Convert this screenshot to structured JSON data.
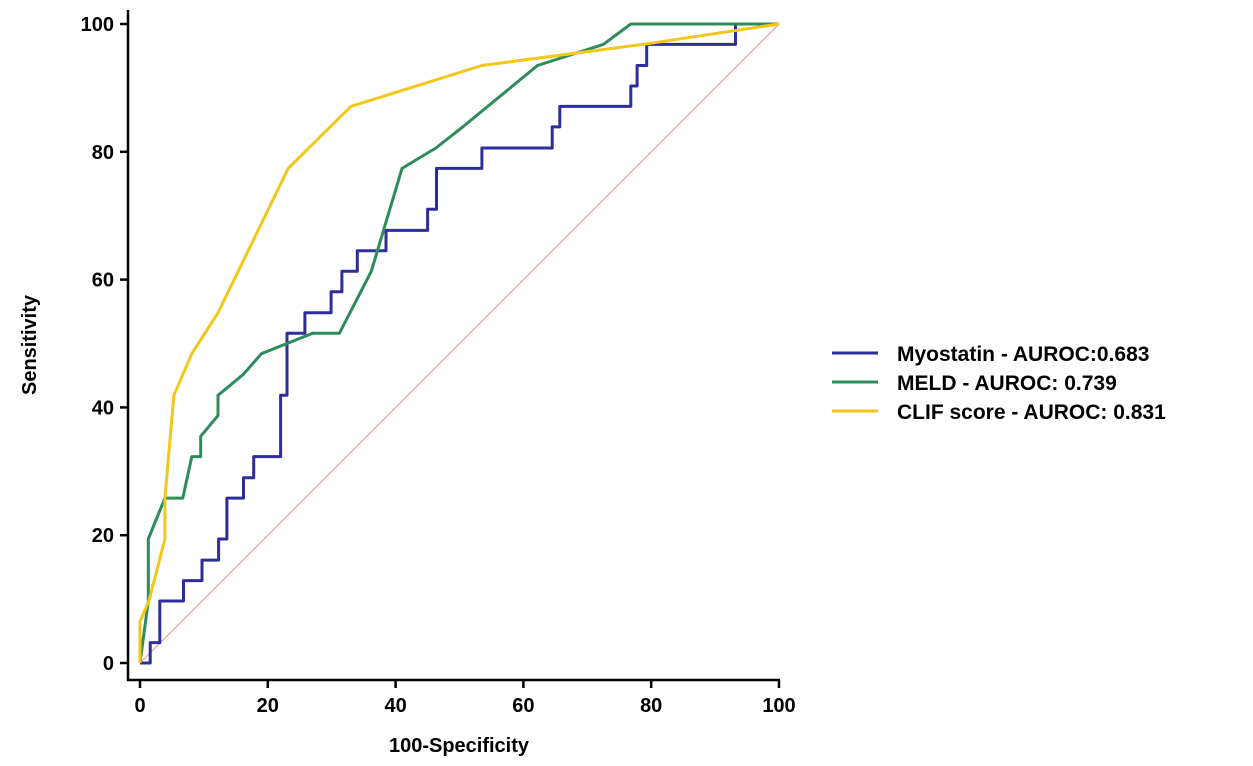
{
  "chart_data": {
    "type": "line",
    "xlabel": "100-Specificity",
    "ylabel": "Sensitivity",
    "xlim": [
      0,
      100
    ],
    "ylim": [
      0,
      100
    ],
    "xticks": [
      0,
      20,
      40,
      60,
      80,
      100
    ],
    "yticks": [
      0,
      20,
      40,
      60,
      80,
      100
    ],
    "grid": false,
    "legend_position": "right",
    "reference_line": {
      "from": [
        0,
        0
      ],
      "to": [
        100,
        100
      ],
      "color": "#e0a0a0"
    },
    "series": [
      {
        "name": "Myostatin - AUROC:0.683",
        "color": "#2e2e9a",
        "step": true,
        "points": [
          [
            0,
            0
          ],
          [
            1.6,
            0
          ],
          [
            1.6,
            3.2
          ],
          [
            3.1,
            3.2
          ],
          [
            3.1,
            9.7
          ],
          [
            6.8,
            9.7
          ],
          [
            6.8,
            12.9
          ],
          [
            9.7,
            12.9
          ],
          [
            9.7,
            16.1
          ],
          [
            12.3,
            16.1
          ],
          [
            12.3,
            19.4
          ],
          [
            13.6,
            19.4
          ],
          [
            13.6,
            25.8
          ],
          [
            16.2,
            25.8
          ],
          [
            16.2,
            29
          ],
          [
            17.8,
            29
          ],
          [
            17.8,
            32.3
          ],
          [
            22,
            32.3
          ],
          [
            22,
            41.9
          ],
          [
            23,
            41.9
          ],
          [
            23,
            51.6
          ],
          [
            25.8,
            51.6
          ],
          [
            25.8,
            54.8
          ],
          [
            29.9,
            54.8
          ],
          [
            29.9,
            58.1
          ],
          [
            31.6,
            58.1
          ],
          [
            31.6,
            61.3
          ],
          [
            34,
            61.3
          ],
          [
            34,
            64.5
          ],
          [
            38.5,
            64.5
          ],
          [
            38.5,
            67.7
          ],
          [
            45,
            67.7
          ],
          [
            45,
            71
          ],
          [
            46.4,
            71
          ],
          [
            46.4,
            77.4
          ],
          [
            53.5,
            77.4
          ],
          [
            53.5,
            80.6
          ],
          [
            64.5,
            80.6
          ],
          [
            64.5,
            83.9
          ],
          [
            65.7,
            83.9
          ],
          [
            65.7,
            87.1
          ],
          [
            76.8,
            87.1
          ],
          [
            76.8,
            90.3
          ],
          [
            77.8,
            90.3
          ],
          [
            77.8,
            93.5
          ],
          [
            79.3,
            93.5
          ],
          [
            79.3,
            96.8
          ],
          [
            93.2,
            96.8
          ],
          [
            93.2,
            100
          ],
          [
            100,
            100
          ]
        ]
      },
      {
        "name": "MELD - AUROC: 0.739",
        "color": "#2e8b5a",
        "step": false,
        "points": [
          [
            0,
            0
          ],
          [
            1.3,
            9.7
          ],
          [
            1.3,
            19.4
          ],
          [
            3.9,
            25.8
          ],
          [
            6.7,
            25.8
          ],
          [
            8.1,
            32.3
          ],
          [
            9.5,
            32.3
          ],
          [
            9.5,
            35.5
          ],
          [
            12.2,
            38.7
          ],
          [
            12.2,
            41.9
          ],
          [
            16.2,
            45.2
          ],
          [
            19,
            48.4
          ],
          [
            23,
            50
          ],
          [
            27,
            51.6
          ],
          [
            31.2,
            51.6
          ],
          [
            36.2,
            61.3
          ],
          [
            41,
            77.4
          ],
          [
            46.3,
            80.6
          ],
          [
            50.5,
            83.9
          ],
          [
            62.2,
            93.5
          ],
          [
            72.5,
            96.8
          ],
          [
            76.8,
            100
          ],
          [
            100,
            100
          ]
        ]
      },
      {
        "name": "CLIF score - AUROC: 0.831",
        "color": "#f2c71a",
        "step": false,
        "points": [
          [
            0,
            0
          ],
          [
            0,
            6.5
          ],
          [
            1.4,
            9.7
          ],
          [
            3.9,
            19.4
          ],
          [
            3.9,
            25.8
          ],
          [
            5.3,
            41.9
          ],
          [
            8.1,
            48.4
          ],
          [
            12.2,
            54.8
          ],
          [
            23.2,
            77.4
          ],
          [
            33,
            87.1
          ],
          [
            53.5,
            93.5
          ],
          [
            80,
            97
          ],
          [
            100,
            100
          ]
        ]
      }
    ]
  }
}
